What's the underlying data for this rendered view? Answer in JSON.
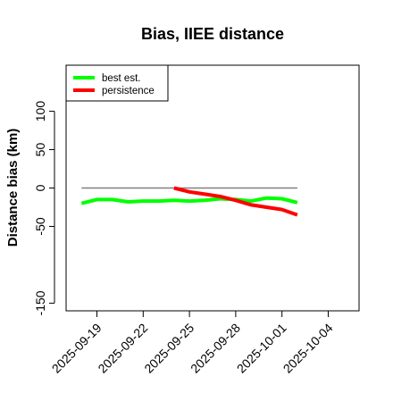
{
  "chart_data": {
    "type": "line",
    "title": "Bias, IIEE distance",
    "xlabel": "",
    "ylabel": "Distance bias (km)",
    "x_dates": [
      "2025-09-18",
      "2025-09-19",
      "2025-09-20",
      "2025-09-21",
      "2025-09-22",
      "2025-09-23",
      "2025-09-24",
      "2025-09-25",
      "2025-09-26",
      "2025-09-27",
      "2025-09-28",
      "2025-09-29",
      "2025-09-30",
      "2025-10-01",
      "2025-10-02"
    ],
    "xlim": [
      "2025-09-17",
      "2025-10-06"
    ],
    "xticks": [
      "2025-09-19",
      "2025-09-22",
      "2025-09-25",
      "2025-09-28",
      "2025-10-01",
      "2025-10-04"
    ],
    "ylim": [
      -160,
      160
    ],
    "yticks": [
      -150,
      -50,
      0,
      50,
      100
    ],
    "reference_line": {
      "y": 0,
      "x_range": [
        "2025-09-18",
        "2025-10-02"
      ],
      "color": "#808080"
    },
    "series": [
      {
        "name": "best est.",
        "color": "#00ff00",
        "x": [
          "2025-09-18",
          "2025-09-19",
          "2025-09-20",
          "2025-09-21",
          "2025-09-22",
          "2025-09-23",
          "2025-09-24",
          "2025-09-25",
          "2025-09-26",
          "2025-09-27",
          "2025-09-28",
          "2025-09-29",
          "2025-09-30",
          "2025-10-01",
          "2025-10-02"
        ],
        "values": [
          -20,
          -15,
          -15,
          -18,
          -17,
          -17,
          -16,
          -17,
          -16,
          -14,
          -15,
          -17,
          -13,
          -14,
          -19
        ]
      },
      {
        "name": "persistence",
        "color": "#ff0000",
        "x": [
          "2025-09-24",
          "2025-09-25",
          "2025-09-26",
          "2025-09-27",
          "2025-09-28",
          "2025-09-29",
          "2025-09-30",
          "2025-10-01",
          "2025-10-02"
        ],
        "values": [
          0,
          -5,
          -8,
          -11,
          -16,
          -22,
          -25,
          -28,
          -35
        ]
      }
    ],
    "legend": {
      "placement": "top-left",
      "entries": [
        "best est.",
        "persistence"
      ]
    },
    "grid": false
  }
}
